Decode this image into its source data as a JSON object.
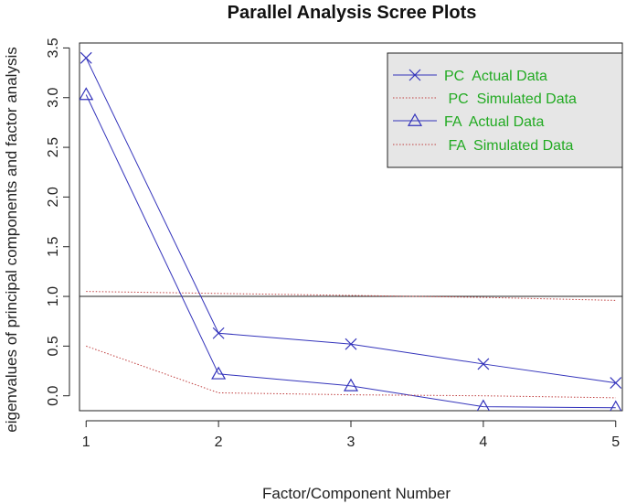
{
  "chart_data": {
    "type": "line",
    "title": "Parallel Analysis Scree Plots",
    "xlabel": "Factor/Component Number",
    "ylabel": "eigenvalues of principal components and factor analysis",
    "x": [
      1,
      2,
      3,
      4,
      5
    ],
    "xlim": [
      0.95,
      5.05
    ],
    "ylim": [
      -0.15,
      3.55
    ],
    "x_ticks": [
      "1",
      "2",
      "3",
      "4",
      "5"
    ],
    "y_ticks": [
      "0.0",
      "0.5",
      "1.0",
      "1.5",
      "2.0",
      "2.5",
      "3.0",
      "3.5"
    ],
    "reference_line": 1.0,
    "legend_position": "top-right",
    "series": [
      {
        "name": "PC  Actual Data",
        "values": [
          3.4,
          0.63,
          0.52,
          0.32,
          0.13
        ],
        "color": "#3333bb",
        "style": "solid",
        "marker": "x"
      },
      {
        "name": " PC  Simulated Data",
        "values": [
          1.05,
          1.03,
          1.01,
          0.99,
          0.96
        ],
        "color": "#c04040",
        "style": "dotted",
        "marker": "none"
      },
      {
        "name": "FA  Actual Data",
        "values": [
          3.03,
          0.22,
          0.1,
          -0.11,
          -0.12
        ],
        "color": "#3333bb",
        "style": "solid",
        "marker": "triangle"
      },
      {
        "name": " FA  Simulated Data",
        "values": [
          0.5,
          0.03,
          0.01,
          0.0,
          -0.02
        ],
        "color": "#c04040",
        "style": "dotted",
        "marker": "none"
      }
    ],
    "colors": {
      "legend_text": "#22aa22",
      "legend_bg": "#e6e6e6",
      "axis": "#222222"
    }
  }
}
